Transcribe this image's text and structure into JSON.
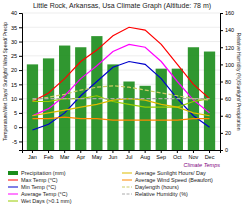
{
  "chart_data": {
    "type": "bar",
    "title": "Little Rock, Arkansas, Usa Climate Graph (Altitude: 78 m)",
    "ylabel": "Temperature/Wet Days/ Sunlight/ Wind Speed/ Precip",
    "y2label": "Relative Humidity (%)/Sunlight/ Precipitation",
    "categories": [
      "Jan",
      "Feb",
      "Mar",
      "Apr",
      "May",
      "Jun",
      "Jul",
      "Aug",
      "Sep",
      "Oct",
      "Nov",
      "Dec"
    ],
    "ylim": [
      -8,
      40
    ],
    "yticks": [
      -5,
      0,
      5,
      10,
      15,
      20,
      25,
      30,
      35,
      40
    ],
    "y2lim": [
      0,
      160
    ],
    "y2ticks": [
      0,
      20,
      40,
      60,
      80,
      100,
      120,
      140,
      160
    ],
    "grid": true,
    "legend": "bottom",
    "annotations": [
      {
        "text": "Climate Temps",
        "color": "purple"
      }
    ],
    "series": [
      {
        "name": "Precipitation (mm)",
        "type": "bar",
        "axis": "y2",
        "color": "#1A8C1A",
        "values": [
          100,
          107,
          122,
          120,
          133,
          100,
          80,
          75,
          95,
          95,
          120,
          115
        ]
      },
      {
        "name": "Max Temp (°C)",
        "type": "line",
        "color": "#FF0000",
        "line_style": "solid",
        "values": [
          9,
          12,
          17,
          23,
          27,
          32,
          35,
          34,
          29,
          22,
          15,
          10
        ]
      },
      {
        "name": "Min Temp (°C)",
        "type": "line",
        "color": "#0000CC",
        "line_style": "solid",
        "values": [
          -1,
          1,
          5,
          11,
          16,
          21,
          23,
          22,
          17,
          10,
          4,
          0
        ]
      },
      {
        "name": "Average Temp (°C)",
        "type": "line",
        "color": "#FF00FF",
        "line_style": "solid",
        "values": [
          4,
          6.5,
          11,
          17,
          21.5,
          26.5,
          29,
          28,
          23,
          16,
          9.5,
          5
        ]
      },
      {
        "name": "Wet Days (>0.1 mm)",
        "type": "line",
        "color": "#99CC00",
        "line_style": "solid",
        "values": [
          9,
          9,
          10,
          10,
          11,
          9,
          8,
          7,
          7,
          7,
          9,
          10
        ]
      },
      {
        "name": "Average Sunlight Hours/ Day",
        "type": "line",
        "color": "#DDBB00",
        "line_style": "solid",
        "values": [
          4,
          5,
          6,
          7,
          8,
          9.5,
          10,
          9.5,
          8,
          7,
          5,
          4
        ]
      },
      {
        "name": "Average Wind Speed (Beaufort)",
        "type": "line",
        "color": "#FF8800",
        "line_style": "solid",
        "values": [
          3.0,
          3.0,
          3.5,
          3.0,
          3.0,
          2.5,
          2.5,
          2.5,
          2.5,
          2.5,
          3.0,
          3.0
        ]
      },
      {
        "name": "Daylength (hours)",
        "type": "line",
        "color": "#CCCC66",
        "line_style": "dashed",
        "values": [
          9.5,
          10.5,
          11.5,
          13.0,
          14.0,
          14.5,
          14.0,
          13.0,
          12.0,
          11.0,
          10.0,
          9.5
        ]
      },
      {
        "name": "Relative Humidity (%)",
        "type": "line",
        "color": "#AAAAAA",
        "line_style": "dashed",
        "values": [
          10,
          10,
          10,
          10,
          10,
          10,
          10,
          10,
          10,
          10,
          10,
          10
        ]
      }
    ]
  }
}
